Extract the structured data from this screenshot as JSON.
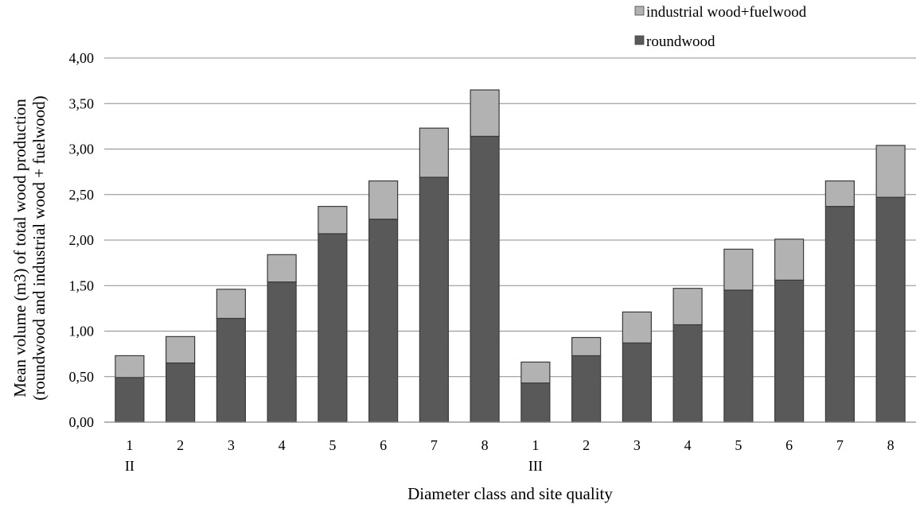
{
  "chart_data": {
    "type": "bar",
    "stacked": true,
    "xlabel": "Diameter class and site quality",
    "ylabel_lines": [
      "Mean volume (m3) of total wood production",
      "(roundwood and industrial wood + fuelwood)"
    ],
    "ylim": [
      0,
      4
    ],
    "yticks": [
      "0,00",
      "0,50",
      "1,00",
      "1,50",
      "2,00",
      "2,50",
      "3,00",
      "3,50",
      "4,00"
    ],
    "ytick_values": [
      0,
      0.5,
      1,
      1.5,
      2,
      2.5,
      3,
      3.5,
      4
    ],
    "grid": "horizontal",
    "legend_position": "top-right",
    "categories": [
      "1",
      "2",
      "3",
      "4",
      "5",
      "6",
      "7",
      "8",
      "1",
      "2",
      "3",
      "4",
      "5",
      "6",
      "7",
      "8"
    ],
    "groups": [
      {
        "label": "II",
        "start_index": 0
      },
      {
        "label": "III",
        "start_index": 8
      }
    ],
    "series": [
      {
        "name": "roundwood",
        "color": "#595959",
        "values": [
          0.49,
          0.65,
          1.14,
          1.54,
          2.07,
          2.23,
          2.69,
          3.14,
          0.43,
          0.73,
          0.87,
          1.07,
          1.45,
          1.56,
          2.37,
          2.47
        ]
      },
      {
        "name": "industrial wood+fuelwood",
        "color": "#b2b2b2",
        "values": [
          0.24,
          0.29,
          0.32,
          0.3,
          0.3,
          0.42,
          0.54,
          0.51,
          0.23,
          0.2,
          0.34,
          0.4,
          0.45,
          0.45,
          0.28,
          0.57
        ]
      }
    ],
    "legend": [
      {
        "label": "industrial wood+fuelwood",
        "color": "#b2b2b2"
      },
      {
        "label": "roundwood",
        "color": "#595959"
      }
    ]
  }
}
